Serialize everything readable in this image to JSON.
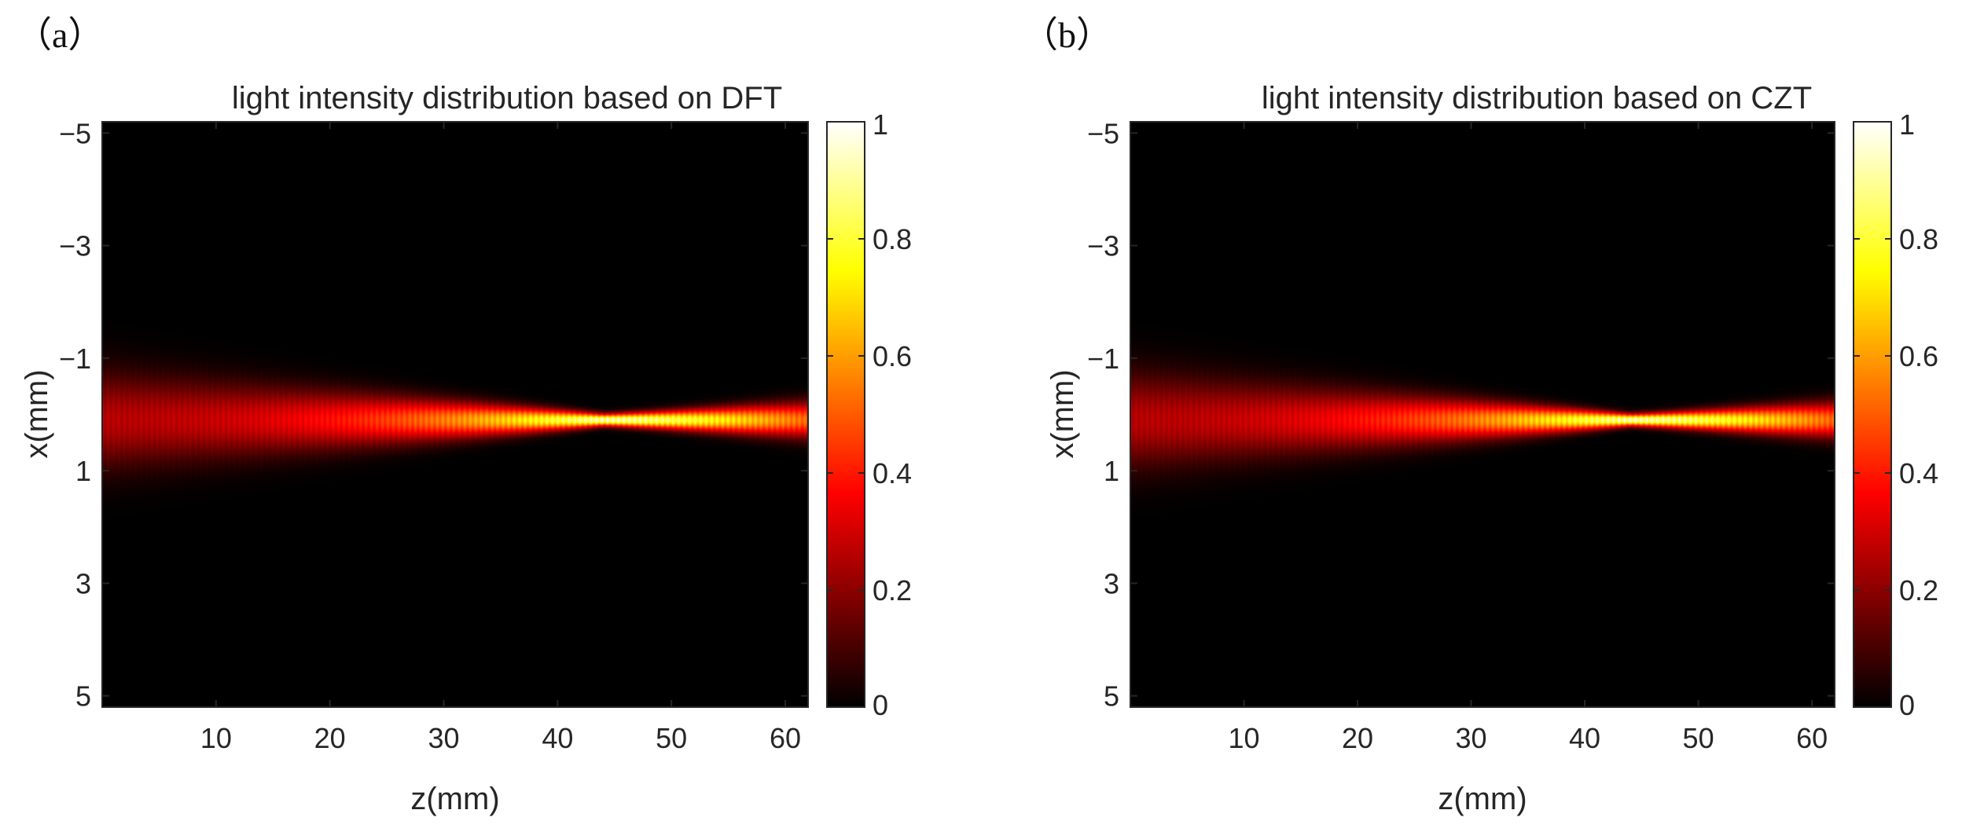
{
  "chart_data": [
    {
      "type": "heatmap",
      "panel_label": "（a）",
      "title": "light intensity distribution based on DFT",
      "xlabel": "z(mm)",
      "ylabel": "x(mm)",
      "xlim": [
        0,
        62
      ],
      "ylim": [
        -5.2,
        5.2
      ],
      "y_reversed": true,
      "xticks": [
        10,
        20,
        30,
        40,
        50,
        60
      ],
      "xtick_labels": [
        "10",
        "20",
        "30",
        "40",
        "50",
        "60"
      ],
      "yticks": [
        -5,
        -3,
        -1,
        1,
        3,
        5
      ],
      "ytick_labels": [
        "−5",
        "−3",
        "−1",
        "1",
        "3",
        "5"
      ],
      "colorbar": {
        "colormap": "hot",
        "range": [
          0,
          1
        ],
        "ticks": [
          0,
          0.2,
          0.4,
          0.6,
          0.8,
          1
        ],
        "tick_labels": [
          "0",
          "0.2",
          "0.4",
          "0.6",
          "0.8",
          "1"
        ]
      },
      "beam": {
        "center_x_mm": 0.1,
        "focus_z_mm": 44,
        "peak_intensity": 1.0,
        "half_width_at_z0_mm": 1.2,
        "half_width_at_focus_mm": 0.15,
        "half_width_at_z62_mm": 0.45,
        "intensity_at_z0": 0.28,
        "intensity_at_z62": 0.55
      }
    },
    {
      "type": "heatmap",
      "panel_label": "（b）",
      "title": "light intensity distribution based on CZT",
      "xlabel": "z(mm)",
      "ylabel": "x(mm)",
      "xlim": [
        0,
        62
      ],
      "ylim": [
        -5.2,
        5.2
      ],
      "y_reversed": true,
      "xticks": [
        10,
        20,
        30,
        40,
        50,
        60
      ],
      "xtick_labels": [
        "10",
        "20",
        "30",
        "40",
        "50",
        "60"
      ],
      "yticks": [
        -5,
        -3,
        -1,
        1,
        3,
        5
      ],
      "ytick_labels": [
        "−5",
        "−3",
        "−1",
        "1",
        "3",
        "5"
      ],
      "colorbar": {
        "colormap": "hot",
        "range": [
          0,
          1
        ],
        "ticks": [
          0,
          0.2,
          0.4,
          0.6,
          0.8,
          1
        ],
        "tick_labels": [
          "0",
          "0.2",
          "0.4",
          "0.6",
          "0.8",
          "1"
        ]
      },
      "beam": {
        "center_x_mm": 0.1,
        "focus_z_mm": 44,
        "peak_intensity": 1.0,
        "half_width_at_z0_mm": 1.2,
        "half_width_at_focus_mm": 0.15,
        "half_width_at_z62_mm": 0.45,
        "intensity_at_z0": 0.28,
        "intensity_at_z62": 0.55
      }
    }
  ]
}
